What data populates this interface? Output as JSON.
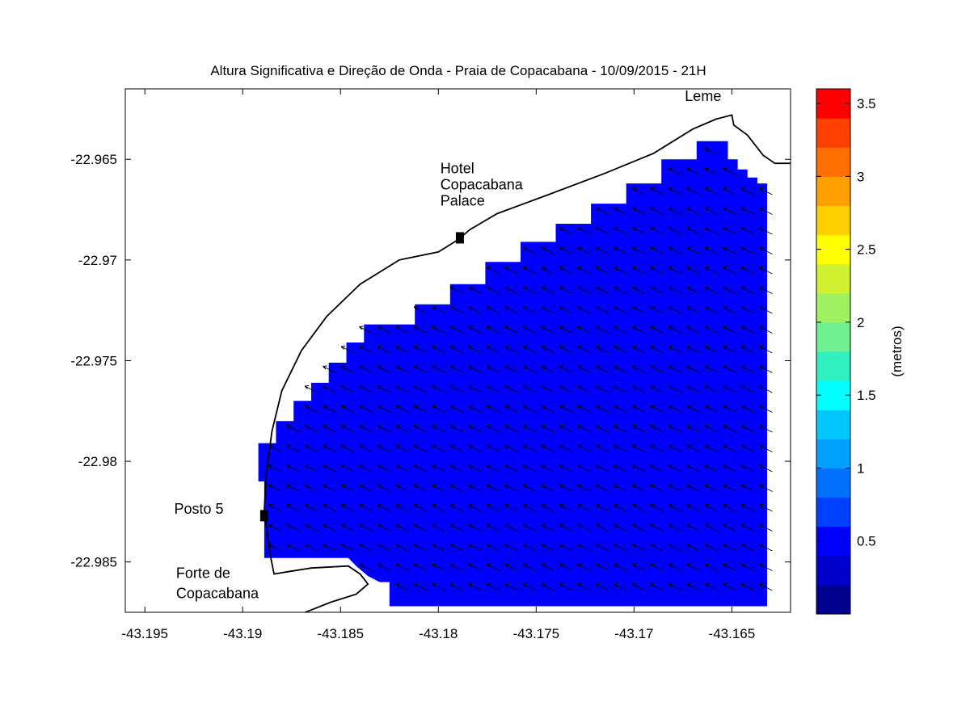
{
  "title": "Altura Significativa e Direção de Onda - Praia de Copacabana - 10/09/2015 - 21H",
  "map": {
    "xlim": [
      -43.196,
      -43.162
    ],
    "ylim": [
      -22.9875,
      -22.9615
    ],
    "x_ticks": [
      {
        "value": -43.195,
        "label": "-43.195"
      },
      {
        "value": -43.19,
        "label": "-43.19"
      },
      {
        "value": -43.185,
        "label": "-43.185"
      },
      {
        "value": -43.18,
        "label": "-43.18"
      },
      {
        "value": -43.175,
        "label": "-43.175"
      },
      {
        "value": -43.17,
        "label": "-43.17"
      },
      {
        "value": -43.165,
        "label": "-43.165"
      }
    ],
    "y_ticks": [
      {
        "value": -22.965,
        "label": "-22.965"
      },
      {
        "value": -22.97,
        "label": "-22.97"
      },
      {
        "value": -22.975,
        "label": "-22.975"
      },
      {
        "value": -22.98,
        "label": "-22.98"
      },
      {
        "value": -22.985,
        "label": "-22.985"
      }
    ],
    "wave_height_field": {
      "typical_value_m": 0.4,
      "color": "#0000ff",
      "boundary": [
        [
          -43.1825,
          -22.9872
        ],
        [
          -43.1632,
          -22.9872
        ],
        [
          -43.1632,
          -22.9662
        ],
        [
          -43.1637,
          -22.9662
        ],
        [
          -43.1637,
          -22.9659
        ],
        [
          -43.1642,
          -22.9659
        ],
        [
          -43.1642,
          -22.9655
        ],
        [
          -43.1647,
          -22.9655
        ],
        [
          -43.1647,
          -22.965
        ],
        [
          -43.1652,
          -22.965
        ],
        [
          -43.1652,
          -22.9641
        ],
        [
          -43.1668,
          -22.9641
        ],
        [
          -43.1668,
          -22.965
        ],
        [
          -43.1686,
          -22.965
        ],
        [
          -43.1686,
          -22.9662
        ],
        [
          -43.1704,
          -22.9662
        ],
        [
          -43.1704,
          -22.9672
        ],
        [
          -43.1722,
          -22.9672
        ],
        [
          -43.1722,
          -22.9682
        ],
        [
          -43.174,
          -22.9682
        ],
        [
          -43.174,
          -22.9691
        ],
        [
          -43.1758,
          -22.9691
        ],
        [
          -43.1758,
          -22.9701
        ],
        [
          -43.1776,
          -22.9701
        ],
        [
          -43.1776,
          -22.9712
        ],
        [
          -43.1794,
          -22.9712
        ],
        [
          -43.1794,
          -22.9722
        ],
        [
          -43.1812,
          -22.9722
        ],
        [
          -43.1812,
          -22.9732
        ],
        [
          -43.1838,
          -22.9732
        ],
        [
          -43.1838,
          -22.9741
        ],
        [
          -43.1847,
          -22.9741
        ],
        [
          -43.1847,
          -22.9751
        ],
        [
          -43.1856,
          -22.9751
        ],
        [
          -43.1856,
          -22.9761
        ],
        [
          -43.1865,
          -22.9761
        ],
        [
          -43.1865,
          -22.977
        ],
        [
          -43.1874,
          -22.977
        ],
        [
          -43.1874,
          -22.978
        ],
        [
          -43.1883,
          -22.978
        ],
        [
          -43.1883,
          -22.9791
        ],
        [
          -43.1892,
          -22.9791
        ],
        [
          -43.1892,
          -22.981
        ],
        [
          -43.1889,
          -22.981
        ],
        [
          -43.1889,
          -22.9848
        ],
        [
          -43.1846,
          -22.9848
        ],
        [
          -43.1842,
          -22.9852
        ],
        [
          -43.1836,
          -22.9857
        ],
        [
          -43.183,
          -22.986
        ],
        [
          -43.1825,
          -22.986
        ]
      ],
      "wave_direction_note": "arrows point toward the shore (north-west)"
    },
    "coastline": [
      [
        -43.1868,
        -22.9875
      ],
      [
        -43.1855,
        -22.987
      ],
      [
        -43.1842,
        -22.9866
      ],
      [
        -43.1836,
        -22.9861
      ],
      [
        -43.184,
        -22.9856
      ],
      [
        -43.1846,
        -22.9852
      ],
      [
        -43.1865,
        -22.9853
      ],
      [
        -43.1878,
        -22.9855
      ],
      [
        -43.1884,
        -22.9856
      ],
      [
        -43.1886,
        -22.9846
      ],
      [
        -43.1889,
        -22.9825
      ],
      [
        -43.1888,
        -22.9806
      ],
      [
        -43.1885,
        -22.9785
      ],
      [
        -43.188,
        -22.9765
      ],
      [
        -43.187,
        -22.9745
      ],
      [
        -43.1857,
        -22.9728
      ],
      [
        -43.184,
        -22.9712
      ],
      [
        -43.182,
        -22.97
      ],
      [
        -43.18,
        -22.9696
      ],
      [
        -43.179,
        -22.969
      ],
      [
        -43.1784,
        -22.9685
      ],
      [
        -43.177,
        -22.9677
      ],
      [
        -43.1745,
        -22.9668
      ],
      [
        -43.1715,
        -22.9657
      ],
      [
        -43.169,
        -22.9647
      ],
      [
        -43.167,
        -22.9635
      ],
      [
        -43.1658,
        -22.963
      ],
      [
        -43.165,
        -22.9628
      ],
      [
        -43.1649,
        -22.9633
      ],
      [
        -43.1642,
        -22.9638
      ],
      [
        -43.1634,
        -22.9648
      ],
      [
        -43.1628,
        -22.9652
      ],
      [
        -43.162,
        -22.9652
      ]
    ],
    "places": [
      {
        "name": "Leme",
        "lon": -43.1674,
        "lat": -22.9621,
        "marker": false
      },
      {
        "name": "Hotel",
        "lon": -43.1799,
        "lat": -22.9657,
        "marker": false
      },
      {
        "name": "Copacabana",
        "lon": -43.1799,
        "lat": -22.9665,
        "marker": false
      },
      {
        "name": "Palace",
        "lon": -43.1799,
        "lat": -22.9673,
        "marker": false
      },
      {
        "name": "Posto 5",
        "lon": -43.1935,
        "lat": -22.9826,
        "marker": false
      },
      {
        "name": "Forte de",
        "lon": -43.1934,
        "lat": -22.9858,
        "marker": false
      },
      {
        "name": "Copacabana",
        "lon": -43.1934,
        "lat": -22.9868,
        "marker": false
      }
    ],
    "markers": [
      {
        "name": "hotel-copacabana-palace",
        "lon": -43.1789,
        "lat": -22.9689
      },
      {
        "name": "posto-5",
        "lon": -43.1889,
        "lat": -22.9827
      }
    ]
  },
  "colorbar": {
    "label": "(metros)",
    "range": [
      0,
      3.6
    ],
    "colors": [
      "#00008f",
      "#0000cc",
      "#0000ff",
      "#0040ff",
      "#0070ff",
      "#00a0ff",
      "#00c8ff",
      "#00ffff",
      "#30f0c0",
      "#70f090",
      "#a0f060",
      "#d0f030",
      "#ffff00",
      "#ffd000",
      "#ffa000",
      "#ff7000",
      "#ff4000",
      "#ff0000"
    ],
    "ticks": [
      {
        "value": 0.5,
        "label": "0.5"
      },
      {
        "value": 1,
        "label": "1"
      },
      {
        "value": 1.5,
        "label": "1.5"
      },
      {
        "value": 2,
        "label": "2"
      },
      {
        "value": 2.5,
        "label": "2.5"
      },
      {
        "value": 3,
        "label": "3"
      },
      {
        "value": 3.5,
        "label": "3.5"
      }
    ]
  }
}
